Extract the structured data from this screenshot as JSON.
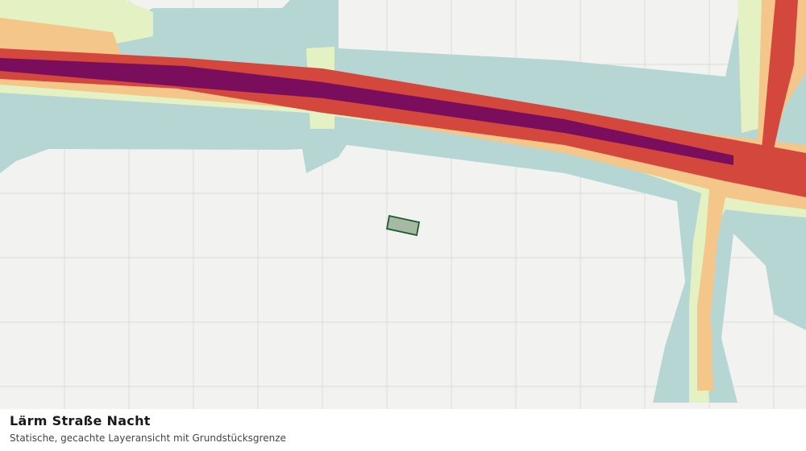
{
  "header": {
    "title": "Lärm Straße Nacht",
    "subtitle": "Statische, gecachte Layeransicht mit Grundstücksgrenze"
  }
}
